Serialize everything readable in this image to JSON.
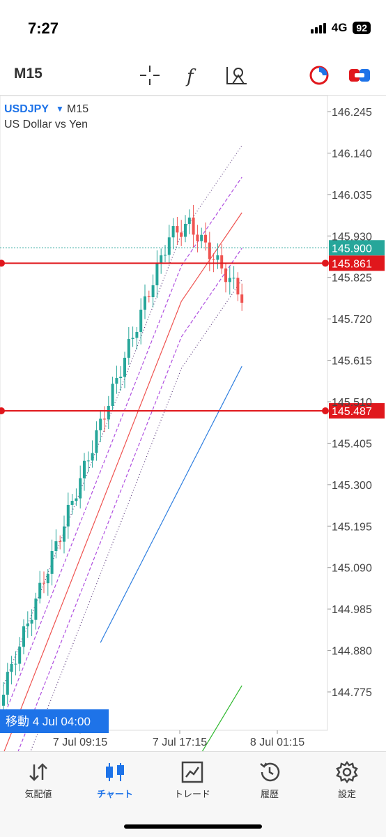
{
  "status": {
    "time": "7:27",
    "network": "4G",
    "battery": "92"
  },
  "toolbar": {
    "timeframe": "M15"
  },
  "chart": {
    "symbol": "USDJPY",
    "timeframe": "M15",
    "description": "US Dollar vs Yen",
    "price_labels": [
      "146.245",
      "146.140",
      "146.035",
      "145.930",
      "145.825",
      "145.720",
      "145.615",
      "145.510",
      "145.405",
      "145.300",
      "145.195",
      "145.090",
      "144.985",
      "144.880",
      "144.775"
    ],
    "time_labels": [
      "7 Jul 09:15",
      "7 Jul 17:15",
      "8 Jul 01:15"
    ],
    "current_price": "145.900",
    "lines": [
      "145.861",
      "145.487"
    ],
    "scroll_label": "移動 4 Jul 04:00",
    "colors": {
      "bull": "#26a69a",
      "bear": "#ef5350",
      "line": "#e0171c",
      "current": "#26a69a"
    }
  },
  "tabs": [
    {
      "label": "気配値",
      "icon": "arrows-icon"
    },
    {
      "label": "チャート",
      "icon": "candles-icon"
    },
    {
      "label": "トレード",
      "icon": "trade-icon"
    },
    {
      "label": "履歴",
      "icon": "history-icon"
    },
    {
      "label": "設定",
      "icon": "gear-icon"
    }
  ]
}
